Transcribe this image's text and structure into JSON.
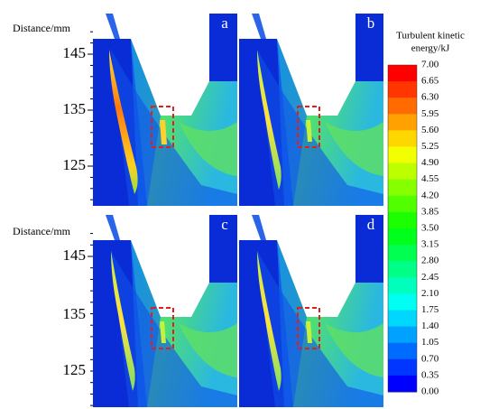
{
  "axis_label_top": "Distance/mm",
  "axis_ticks_top": [
    "145",
    "135",
    "125"
  ],
  "axis_label_bottom": "Distance/mm",
  "axis_ticks_bottom": [
    "145",
    "135",
    "125"
  ],
  "panels": [
    "a",
    "b",
    "c",
    "d"
  ],
  "colorbar": {
    "title": [
      "Turbulent kinetic",
      "energy/kJ"
    ],
    "labels": [
      "7.00",
      "6.65",
      "6.30",
      "5.95",
      "5.60",
      "5.25",
      "4.90",
      "4.55",
      "4.20",
      "3.85",
      "3.50",
      "3.15",
      "2.80",
      "2.45",
      "2.10",
      "1.75",
      "1.40",
      "1.05",
      "0.70",
      "0.35",
      "0.00"
    ]
  }
}
